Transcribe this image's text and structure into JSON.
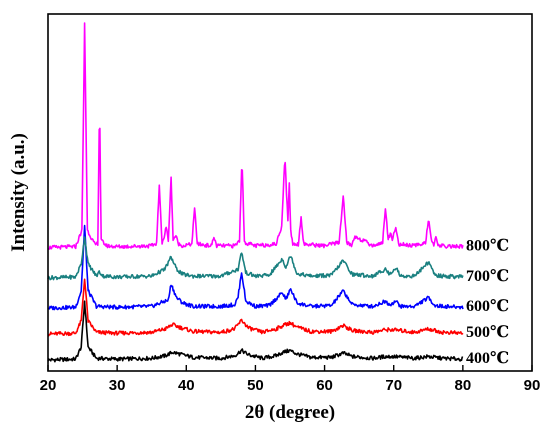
{
  "chart_data": {
    "type": "line",
    "xlabel": "2θ (degree)",
    "ylabel": "Intensity (a.u.)",
    "xlim": [
      20,
      90
    ],
    "xticks": [
      "20",
      "30",
      "40",
      "50",
      "60",
      "70",
      "80",
      "90"
    ],
    "y_ticks_shown": false,
    "grid": false,
    "legend": "right-inline",
    "series": [
      {
        "name": "400℃",
        "color": "#000000",
        "baseline": 0,
        "x": [
          20,
          24,
          24.8,
          25.3,
          25.8,
          27,
          30,
          35,
          37,
          38,
          39,
          41,
          45,
          47,
          48,
          49,
          51,
          53,
          54,
          55,
          56,
          58,
          61,
          62.7,
          64,
          67,
          68.8,
          70,
          73,
          75,
          77,
          80
        ],
        "y": [
          0,
          0.1,
          1.5,
          6.8,
          1.5,
          0.2,
          0.1,
          0.2,
          0.5,
          0.9,
          0.7,
          0.3,
          0.2,
          0.5,
          1.1,
          0.6,
          0.2,
          0.5,
          0.9,
          1.1,
          0.7,
          0.3,
          0.3,
          0.8,
          0.4,
          0.2,
          0.4,
          0.4,
          0.2,
          0.4,
          0.2,
          0.1
        ]
      },
      {
        "name": "500℃",
        "color": "#ff0000",
        "baseline": 3.0,
        "x": [
          20,
          24,
          24.8,
          25.3,
          25.8,
          27,
          30,
          35,
          37,
          38,
          39,
          41,
          45,
          47,
          48,
          49,
          51,
          53,
          54,
          55,
          56,
          58,
          61,
          62.7,
          64,
          67,
          68.8,
          70,
          73,
          75,
          77,
          80
        ],
        "y": [
          0,
          0.1,
          1.5,
          6.5,
          1.5,
          0.2,
          0.1,
          0.2,
          0.6,
          1.1,
          0.8,
          0.3,
          0.2,
          0.6,
          1.6,
          0.7,
          0.2,
          0.6,
          1.0,
          1.3,
          0.8,
          0.3,
          0.3,
          1.0,
          0.4,
          0.2,
          0.5,
          0.5,
          0.2,
          0.6,
          0.2,
          0.1
        ]
      },
      {
        "name": "600℃",
        "color": "#0000ff",
        "baseline": 6.0,
        "x": [
          20,
          24,
          24.8,
          25.3,
          25.8,
          27,
          30,
          35,
          36.9,
          37.4,
          37.8,
          38.6,
          39.5,
          41,
          45,
          47,
          47.5,
          48.0,
          48.6,
          50,
          52,
          53.9,
          54.4,
          55.1,
          56,
          58,
          61,
          62.7,
          64,
          67,
          68.8,
          69.4,
          70.3,
          71,
          73,
          75.0,
          76,
          77,
          80
        ],
        "y": [
          0,
          0.1,
          2.0,
          9.5,
          2.0,
          0.2,
          0.1,
          0.2,
          0.8,
          0.9,
          2.8,
          1.2,
          0.6,
          0.2,
          0.2,
          0.4,
          1.3,
          4.2,
          0.8,
          0.2,
          0.3,
          1.8,
          1.0,
          2.2,
          0.6,
          0.2,
          0.3,
          2.0,
          0.4,
          0.2,
          0.8,
          0.4,
          0.8,
          0.2,
          0.2,
          1.2,
          0.3,
          0.2,
          0.1
        ]
      },
      {
        "name": "700℃",
        "color": "#1a8080",
        "baseline": 9.5,
        "x": [
          20,
          24,
          24.8,
          25.3,
          25.8,
          27,
          27.4,
          28,
          30,
          35,
          36.9,
          37.8,
          38.6,
          39.5,
          41,
          45,
          47.5,
          48.0,
          48.6,
          50,
          52,
          53.9,
          54.4,
          55.1,
          56,
          58,
          61,
          62.7,
          64,
          67,
          68.8,
          69.4,
          70.3,
          71,
          73,
          75.0,
          76,
          77,
          80
        ],
        "y": [
          0,
          0.1,
          1.6,
          4.8,
          1.6,
          0.2,
          0.7,
          0.2,
          0.1,
          0.2,
          1.0,
          2.4,
          1.0,
          0.4,
          0.2,
          0.2,
          1.0,
          3.0,
          0.6,
          0.2,
          0.3,
          2.2,
          1.2,
          2.6,
          0.5,
          0.2,
          0.3,
          2.0,
          0.4,
          0.2,
          1.0,
          0.4,
          1.2,
          0.2,
          0.2,
          1.8,
          0.3,
          0.2,
          0.1
        ]
      },
      {
        "name": "800℃",
        "color": "#ff00ff",
        "baseline": 13.0,
        "x": [
          20,
          24,
          24.9,
          25.3,
          25.7,
          26.8,
          27.2,
          27.45,
          27.7,
          28.5,
          30,
          35,
          35.7,
          36.1,
          36.5,
          36.8,
          37.1,
          37.4,
          37.8,
          38.1,
          38.5,
          38.8,
          39.1,
          39.6,
          40.8,
          41.2,
          41.6,
          43.6,
          44.0,
          44.4,
          47,
          47.7,
          48.05,
          48.4,
          50,
          53,
          53.8,
          54.25,
          54.7,
          54.9,
          55.1,
          55.4,
          56.2,
          56.6,
          57.0,
          60,
          62.1,
          62.7,
          63.2,
          63.9,
          64.4,
          67,
          68.4,
          68.8,
          69.2,
          69.6,
          69.8,
          70.3,
          70.7,
          73,
          74.6,
          75.05,
          75.5,
          75.8,
          76.1,
          76.5,
          80
        ],
        "y": [
          0,
          0.1,
          2.0,
          26.0,
          2.0,
          0.3,
          0.5,
          17.0,
          0.8,
          0.2,
          0.1,
          0.2,
          0.5,
          7.0,
          0.6,
          1.2,
          2.4,
          0.8,
          8.0,
          0.9,
          1.4,
          0.5,
          0.3,
          0.2,
          0.4,
          4.5,
          0.4,
          0.2,
          1.2,
          0.2,
          0.2,
          0.8,
          10.5,
          0.6,
          0.2,
          0.4,
          2.5,
          10.5,
          3.0,
          7.5,
          2.0,
          0.4,
          0.4,
          3.5,
          0.4,
          0.2,
          0.6,
          6.0,
          0.6,
          0.2,
          1.3,
          0.2,
          0.6,
          4.5,
          1.0,
          1.8,
          1.0,
          2.3,
          0.4,
          0.2,
          0.6,
          3.3,
          0.6,
          0.2,
          1.1,
          0.2,
          0.1
        ]
      }
    ]
  }
}
